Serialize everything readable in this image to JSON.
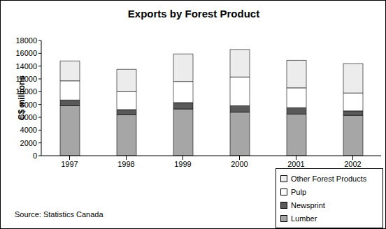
{
  "chart_data": {
    "type": "bar",
    "title": "Exports by Forest Product",
    "y_label": "C$ millions",
    "source": "Source: Statistics Canada",
    "categories": [
      "1997",
      "1998",
      "1999",
      "2000",
      "2001",
      "2002"
    ],
    "series": [
      {
        "name": "Lumber",
        "color": "#a6a6a6",
        "values": [
          7800,
          6400,
          7300,
          6800,
          6500,
          6300
        ]
      },
      {
        "name": "Newsprint",
        "color": "#595959",
        "values": [
          900,
          800,
          1000,
          1000,
          1000,
          700
        ]
      },
      {
        "name": "Pulp",
        "color": "#ffffff",
        "values": [
          3000,
          2800,
          3300,
          4500,
          3100,
          2800
        ]
      },
      {
        "name": "Other Forest Products",
        "color": "#ececec",
        "values": [
          3100,
          3500,
          4300,
          4300,
          4300,
          4600
        ]
      }
    ],
    "ylim": [
      0,
      18000
    ],
    "yticks": [
      0,
      2000,
      4000,
      6000,
      8000,
      10000,
      12000,
      14000,
      16000,
      18000
    ],
    "stacked": true,
    "grid": false,
    "legend": "bottom-right"
  }
}
